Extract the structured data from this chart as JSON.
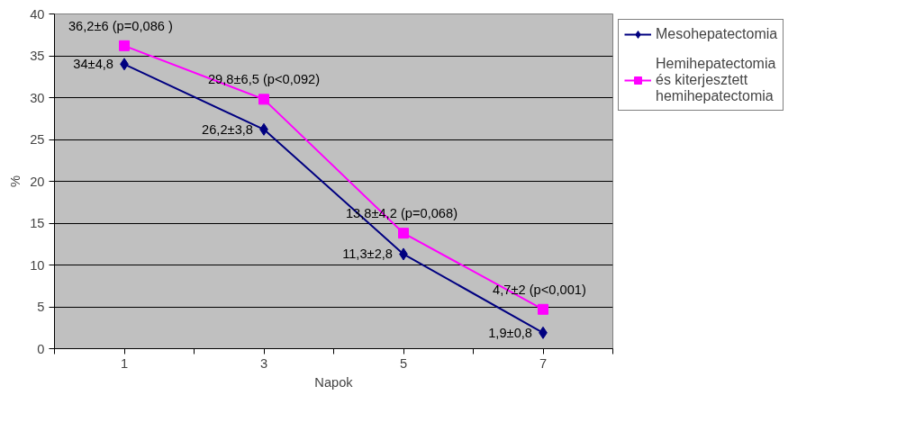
{
  "chart_data": {
    "type": "line",
    "xlabel": "Napok",
    "ylabel": "%",
    "x": [
      1,
      3,
      5,
      7
    ],
    "series": [
      {
        "name": "Mesohepatectomia",
        "color": "#000080",
        "values": [
          34,
          26.2,
          11.3,
          1.9
        ],
        "marker": "diamond",
        "value_labels": [
          "34±4,8",
          "26,2±3,8",
          "11,3±2,8",
          "1,9±0,8"
        ]
      },
      {
        "name": "Hemihepatectomia\nés kiterjesztett\nhemihepatectomia",
        "color": "#ff00ff",
        "values": [
          36.2,
          29.8,
          13.8,
          4.7
        ],
        "marker": "square",
        "value_labels": [
          "36,2±6   (p=0,086 )",
          "29,8±6,5 (p<0,092)",
          "13,8±4,2  (p=0,068)",
          "4,7±2   (p<0,001)"
        ]
      }
    ],
    "xlim": [
      0,
      8
    ],
    "xticks": [
      {
        "value": 0,
        "label": null
      },
      1,
      {
        "value": 2,
        "label": null
      },
      3,
      {
        "value": 4,
        "label": null
      },
      5,
      {
        "value": 6,
        "label": null
      },
      7,
      {
        "value": 8,
        "label": null
      }
    ],
    "ylim": [
      0,
      40
    ],
    "yticks": [
      0,
      5,
      10,
      15,
      20,
      25,
      30,
      35,
      40
    ],
    "grid": "y",
    "legend": "right",
    "line_style": "solid"
  }
}
